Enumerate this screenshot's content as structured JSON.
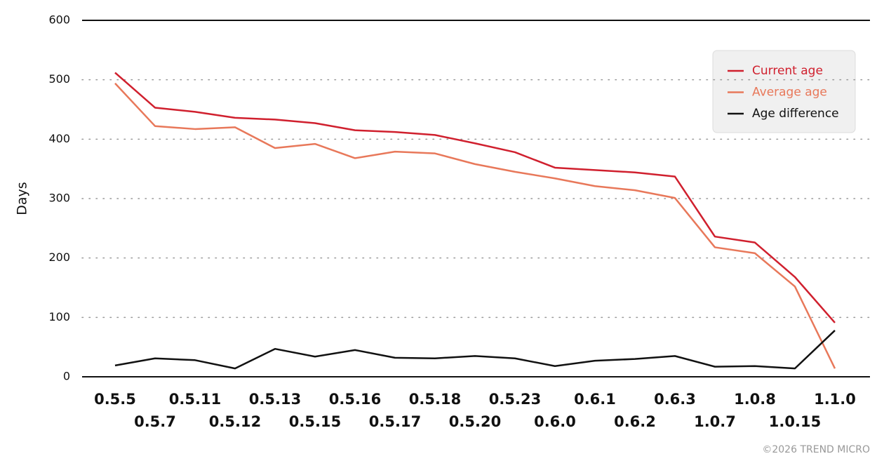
{
  "chart_data": {
    "type": "line",
    "y_label": "Days",
    "footer": "©2026 TREND MICRO",
    "categories": [
      "0.5.5",
      "0.5.7",
      "0.5.11",
      "0.5.12",
      "0.5.13",
      "0.5.15",
      "0.5.16",
      "0.5.17",
      "0.5.18",
      "0.5.20",
      "0.5.23",
      "0.6.0",
      "0.6.1",
      "0.6.2",
      "0.6.3",
      "1.0.7",
      "1.0.8",
      "1.0.15",
      "1.1.0"
    ],
    "series": [
      {
        "name": "Current age",
        "color": "#d0202e",
        "values": [
          512,
          453,
          446,
          436,
          433,
          427,
          415,
          412,
          407,
          393,
          378,
          352,
          348,
          344,
          337,
          236,
          226,
          168,
          91
        ]
      },
      {
        "name": "Average age",
        "color": "#e8785a",
        "values": [
          494,
          422,
          417,
          420,
          385,
          392,
          368,
          379,
          376,
          358,
          345,
          334,
          321,
          314,
          301,
          218,
          208,
          152,
          14
        ]
      },
      {
        "name": "Age difference",
        "color": "#111111",
        "values": [
          19,
          31,
          28,
          14,
          47,
          34,
          45,
          32,
          31,
          35,
          31,
          18,
          27,
          30,
          35,
          17,
          18,
          14,
          78
        ]
      }
    ],
    "ylim": [
      0,
      600
    ],
    "yticks": [
      0,
      100,
      200,
      300,
      400,
      500,
      600
    ],
    "grid": "dotted",
    "legend": "top-right"
  }
}
